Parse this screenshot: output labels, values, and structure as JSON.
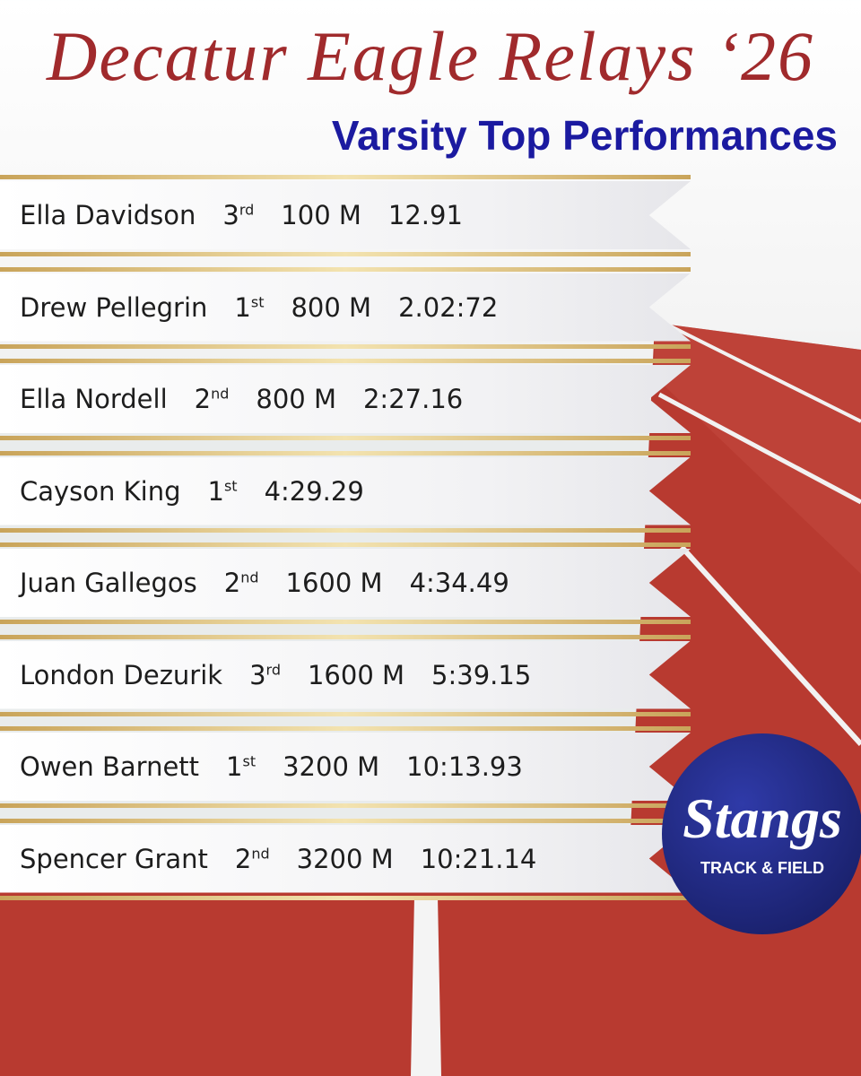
{
  "header": {
    "title": "Decatur Eagle Relays ‘26",
    "subtitle": "Varsity Top Performances"
  },
  "rows": [
    {
      "name": "Ella Davidson",
      "place": "3",
      "suffix": "rd",
      "event": "100 M",
      "time": "12.91"
    },
    {
      "name": "Drew Pellegrin",
      "place": "1",
      "suffix": "st",
      "event": "800 M",
      "time": "2.02:72"
    },
    {
      "name": "Ella Nordell",
      "place": "2",
      "suffix": "nd",
      "event": "800 M",
      "time": "2:27.16"
    },
    {
      "name": "Cayson King",
      "place": "1",
      "suffix": "st",
      "time": "4:29.29"
    },
    {
      "name": "Juan Gallegos",
      "place": "2",
      "suffix": "nd",
      "event": "1600 M",
      "time": "4:34.49"
    },
    {
      "name": "London Dezurik",
      "place": "3",
      "suffix": "rd",
      "event": "1600 M",
      "time": "5:39.15"
    },
    {
      "name": "Owen Barnett",
      "place": "1",
      "suffix": "st",
      "event": "3200 M",
      "time": "10:13.93"
    },
    {
      "name": "Spencer Grant",
      "place": "2",
      "suffix": "nd",
      "event": "3200 M",
      "time": "10:21.14"
    }
  ],
  "logo": {
    "name": "Stangs",
    "tagline": "TRACK & FIELD"
  }
}
